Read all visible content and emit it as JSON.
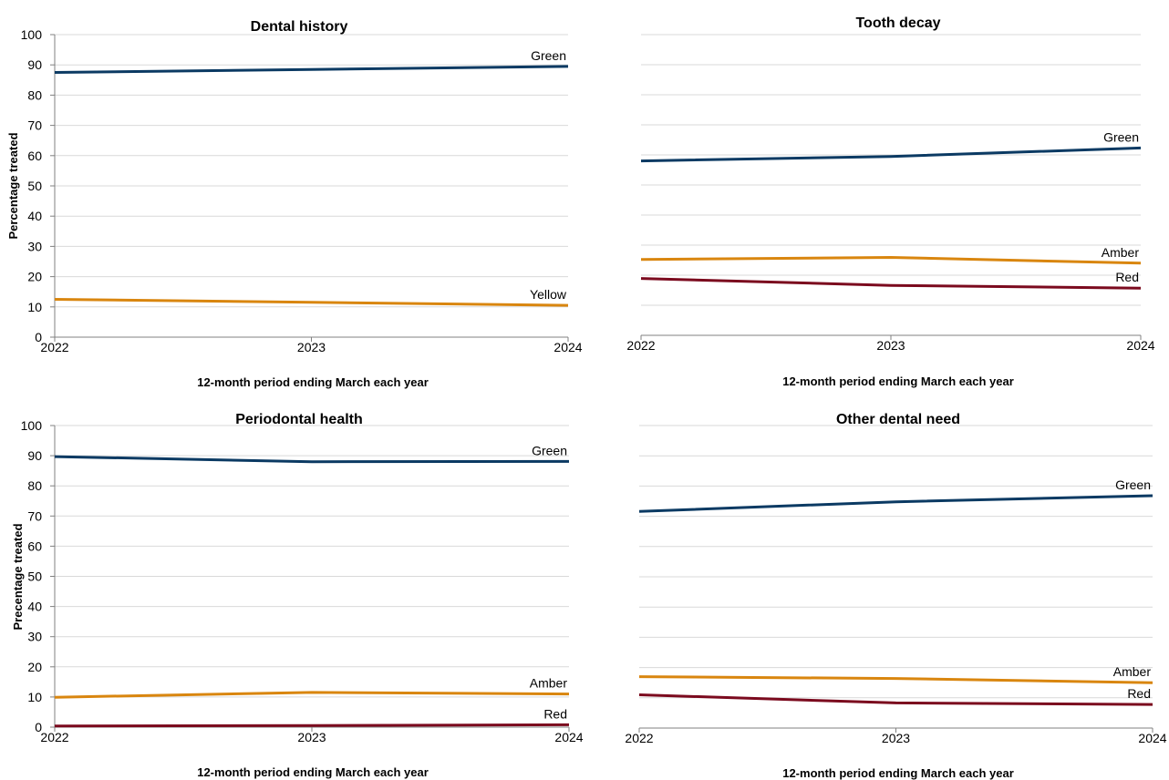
{
  "colors": {
    "green": "#0b3a63",
    "amber": "#d9860f",
    "red": "#7b0a1e",
    "grid": "#d9d9d9",
    "axis": "#808080"
  },
  "chart_data": [
    {
      "type": "line",
      "title": "Dental history",
      "xlabel": "12-month period ending March each year",
      "ylabel": "Percentage treated",
      "x": [
        "2022",
        "2023",
        "2024"
      ],
      "ylim": [
        0,
        100
      ],
      "yticks": [
        "0",
        "10",
        "20",
        "30",
        "40",
        "50",
        "60",
        "70",
        "80",
        "90",
        "100"
      ],
      "grid": true,
      "series": [
        {
          "name": "Green",
          "color": "#0b3a63",
          "values": [
            87.5,
            88.5,
            89.5
          ]
        },
        {
          "name": "Yellow",
          "color": "#d9860f",
          "values": [
            12.5,
            11.5,
            10.5
          ]
        }
      ]
    },
    {
      "type": "line",
      "title": "Tooth decay",
      "xlabel": "12-month period ending March each year",
      "ylabel": "",
      "x": [
        "2022",
        "2023",
        "2024"
      ],
      "ylim": [
        0,
        100
      ],
      "yticks": [],
      "grid": true,
      "series": [
        {
          "name": "Green",
          "color": "#0b3a63",
          "values": [
            58,
            59.5,
            62.3
          ]
        },
        {
          "name": "Amber",
          "color": "#d9860f",
          "values": [
            25.2,
            25.9,
            24
          ]
        },
        {
          "name": "Red",
          "color": "#7b0a1e",
          "values": [
            18.9,
            16.6,
            15.7
          ]
        }
      ]
    },
    {
      "type": "line",
      "title": "Periodontal health",
      "xlabel": "12-month period ending March each year",
      "ylabel": "Precentage treated",
      "x": [
        "2022",
        "2023",
        "2024"
      ],
      "ylim": [
        0,
        100
      ],
      "yticks": [
        "0",
        "10",
        "20",
        "30",
        "40",
        "50",
        "60",
        "70",
        "80",
        "90",
        "100"
      ],
      "grid": true,
      "series": [
        {
          "name": "Green",
          "color": "#0b3a63",
          "values": [
            89.7,
            88,
            88.1
          ]
        },
        {
          "name": "Amber",
          "color": "#d9860f",
          "values": [
            9.9,
            11.5,
            11
          ]
        },
        {
          "name": "Red",
          "color": "#7b0a1e",
          "values": [
            0.4,
            0.5,
            0.8
          ]
        }
      ]
    },
    {
      "type": "line",
      "title": "Other dental need",
      "xlabel": "12-month period ending March each year",
      "ylabel": "",
      "x": [
        "2022",
        "2023",
        "2024"
      ],
      "ylim": [
        0,
        100
      ],
      "yticks": [],
      "grid": true,
      "series": [
        {
          "name": "Green",
          "color": "#0b3a63",
          "values": [
            71.6,
            74.8,
            76.8
          ]
        },
        {
          "name": "Amber",
          "color": "#d9860f",
          "values": [
            17,
            16.4,
            15
          ]
        },
        {
          "name": "Red",
          "color": "#7b0a1e",
          "values": [
            11,
            8.3,
            7.8
          ]
        }
      ]
    }
  ]
}
